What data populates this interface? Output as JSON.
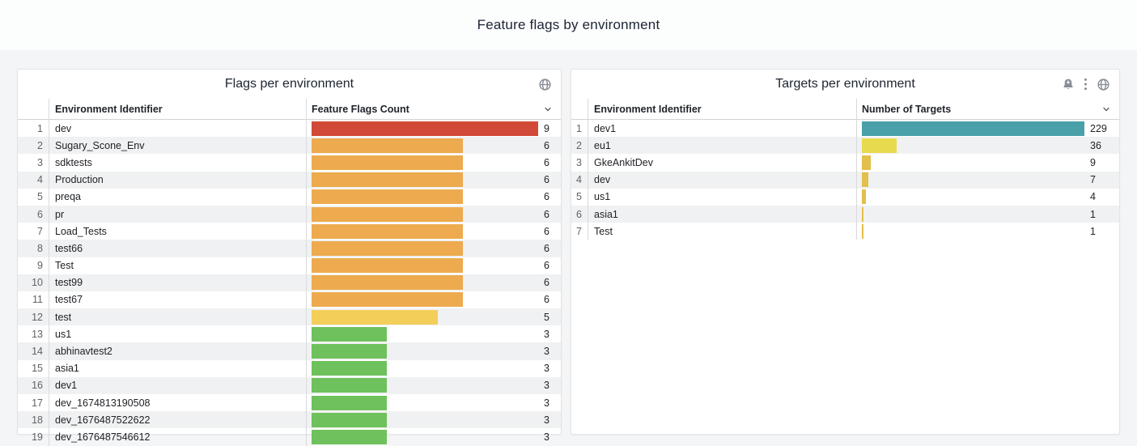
{
  "page": {
    "title": "Feature flags by environment",
    "background": "#f4f5f6"
  },
  "colors": {
    "red": "#d04a37",
    "orange": "#edaa4e",
    "yellow": "#f3cf59",
    "green": "#6ec15c",
    "teal": "#4aa0a8",
    "lime_yellow": "#e8da4e",
    "gold": "#e3bf4b"
  },
  "panels": [
    {
      "title": "Flags per environment",
      "icons": [
        "globe-icon"
      ],
      "columns": [
        "Environment Identifier",
        "Feature Flags Count"
      ],
      "max": 9,
      "rows": [
        {
          "n": "1",
          "name": "dev",
          "value": "9",
          "color": "#d04a37"
        },
        {
          "n": "2",
          "name": "Sugary_Scone_Env",
          "value": "6",
          "color": "#edaa4e"
        },
        {
          "n": "3",
          "name": "sdktests",
          "value": "6",
          "color": "#edaa4e"
        },
        {
          "n": "4",
          "name": "Production",
          "value": "6",
          "color": "#edaa4e"
        },
        {
          "n": "5",
          "name": "preqa",
          "value": "6",
          "color": "#edaa4e"
        },
        {
          "n": "6",
          "name": "pr",
          "value": "6",
          "color": "#edaa4e"
        },
        {
          "n": "7",
          "name": "Load_Tests",
          "value": "6",
          "color": "#edaa4e"
        },
        {
          "n": "8",
          "name": "test66",
          "value": "6",
          "color": "#edaa4e"
        },
        {
          "n": "9",
          "name": "Test",
          "value": "6",
          "color": "#edaa4e"
        },
        {
          "n": "10",
          "name": "test99",
          "value": "6",
          "color": "#edaa4e"
        },
        {
          "n": "11",
          "name": "test67",
          "value": "6",
          "color": "#edaa4e"
        },
        {
          "n": "12",
          "name": "test",
          "value": "5",
          "color": "#f3cf59"
        },
        {
          "n": "13",
          "name": "us1",
          "value": "3",
          "color": "#6ec15c"
        },
        {
          "n": "14",
          "name": "abhinavtest2",
          "value": "3",
          "color": "#6ec15c"
        },
        {
          "n": "15",
          "name": "asia1",
          "value": "3",
          "color": "#6ec15c"
        },
        {
          "n": "16",
          "name": "dev1",
          "value": "3",
          "color": "#6ec15c"
        },
        {
          "n": "17",
          "name": "dev_1674813190508",
          "value": "3",
          "color": "#6ec15c"
        },
        {
          "n": "18",
          "name": "dev_1676487522622",
          "value": "3",
          "color": "#6ec15c"
        },
        {
          "n": "19",
          "name": "dev_1676487546612",
          "value": "3",
          "color": "#6ec15c"
        }
      ]
    },
    {
      "title": "Targets per environment",
      "icons": [
        "bell-plus-icon",
        "kebab-menu-icon",
        "globe-icon"
      ],
      "columns": [
        "Environment Identifier",
        "Number of Targets"
      ],
      "max": 229,
      "rows": [
        {
          "n": "1",
          "name": "dev1",
          "value": "229",
          "color": "#4aa0a8"
        },
        {
          "n": "2",
          "name": "eu1",
          "value": "36",
          "color": "#e8da4e"
        },
        {
          "n": "3",
          "name": "GkeAnkitDev",
          "value": "9",
          "color": "#e3bf4b"
        },
        {
          "n": "4",
          "name": "dev",
          "value": "7",
          "color": "#e3bf4b"
        },
        {
          "n": "5",
          "name": "us1",
          "value": "4",
          "color": "#e3bf4b"
        },
        {
          "n": "6",
          "name": "asia1",
          "value": "1",
          "color": "#e3bf4b"
        },
        {
          "n": "7",
          "name": "Test",
          "value": "1",
          "color": "#e3bf4b"
        }
      ]
    }
  ],
  "chart_data": [
    {
      "type": "bar",
      "orientation": "horizontal",
      "title": "Flags per environment",
      "xlabel": "Feature Flags Count",
      "ylabel": "Environment Identifier",
      "xlim": [
        0,
        9
      ],
      "categories": [
        "dev",
        "Sugary_Scone_Env",
        "sdktests",
        "Production",
        "preqa",
        "pr",
        "Load_Tests",
        "test66",
        "Test",
        "test99",
        "test67",
        "test",
        "us1",
        "abhinavtest2",
        "asia1",
        "dev1",
        "dev_1674813190508",
        "dev_1676487522622",
        "dev_1676487546612"
      ],
      "values": [
        9,
        6,
        6,
        6,
        6,
        6,
        6,
        6,
        6,
        6,
        6,
        5,
        3,
        3,
        3,
        3,
        3,
        3,
        3
      ]
    },
    {
      "type": "bar",
      "orientation": "horizontal",
      "title": "Targets per environment",
      "xlabel": "Number of Targets",
      "ylabel": "Environment Identifier",
      "xlim": [
        0,
        229
      ],
      "categories": [
        "dev1",
        "eu1",
        "GkeAnkitDev",
        "dev",
        "us1",
        "asia1",
        "Test"
      ],
      "values": [
        229,
        36,
        9,
        7,
        4,
        1,
        1
      ]
    }
  ]
}
